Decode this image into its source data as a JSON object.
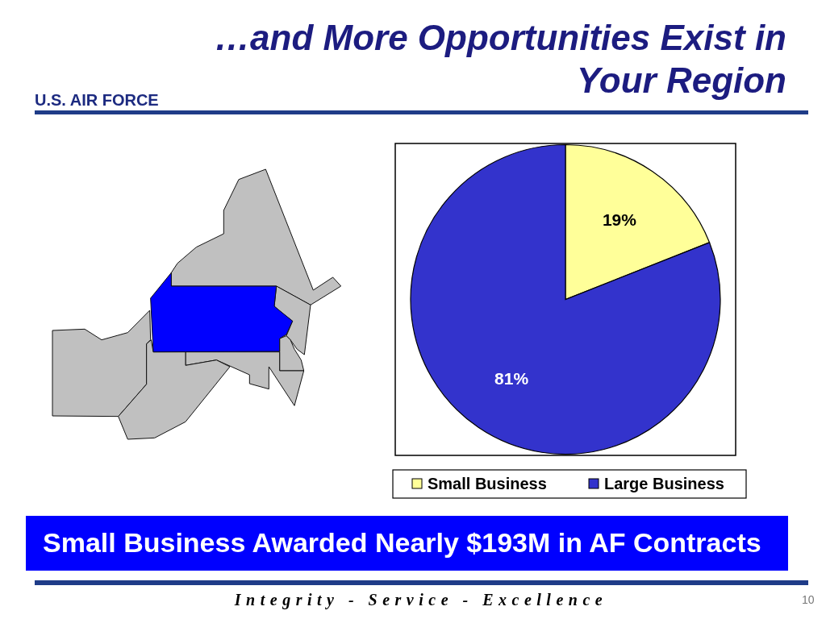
{
  "chart_data": {
    "type": "pie",
    "title": "…and More Opportunities Exist in Your Region",
    "categories": [
      "Small Business",
      "Large Business"
    ],
    "values": [
      19,
      81
    ],
    "colors": [
      "#ffff99",
      "#3333cc"
    ],
    "value_labels": [
      "19%",
      "81%"
    ],
    "legend": "bottom",
    "annotations": [
      "U.S. AIR FORCE",
      "Small Business Awarded Nearly $193M in AF Contracts",
      "Integrity - Service - Excellence",
      "10"
    ]
  }
}
